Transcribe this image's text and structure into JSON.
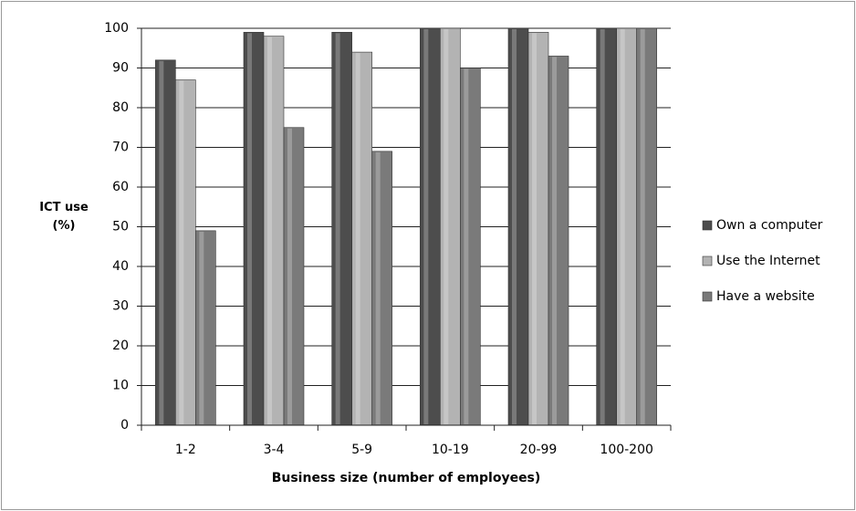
{
  "chart_data": {
    "type": "bar",
    "x_label": "Business size (number of employees)",
    "y_label": "ICT use (%)",
    "categories": [
      "1-2",
      "3-4",
      "5-9",
      "10-19",
      "20-99",
      "100-200"
    ],
    "series": [
      {
        "name": "Own a computer",
        "color": "#4d4d4d",
        "values": [
          92,
          99,
          99,
          100,
          100,
          100
        ]
      },
      {
        "name": "Use the Internet",
        "color": "#b3b3b3",
        "values": [
          87,
          98,
          94,
          100,
          99,
          100
        ]
      },
      {
        "name": "Have a website",
        "color": "#7a7a7a",
        "values": [
          49,
          75,
          69,
          90,
          93,
          100
        ]
      }
    ],
    "ylim": [
      0,
      100
    ],
    "yticks": [
      0,
      10,
      20,
      30,
      40,
      50,
      60,
      70,
      80,
      90,
      100
    ],
    "grid": true,
    "legend": "right"
  }
}
